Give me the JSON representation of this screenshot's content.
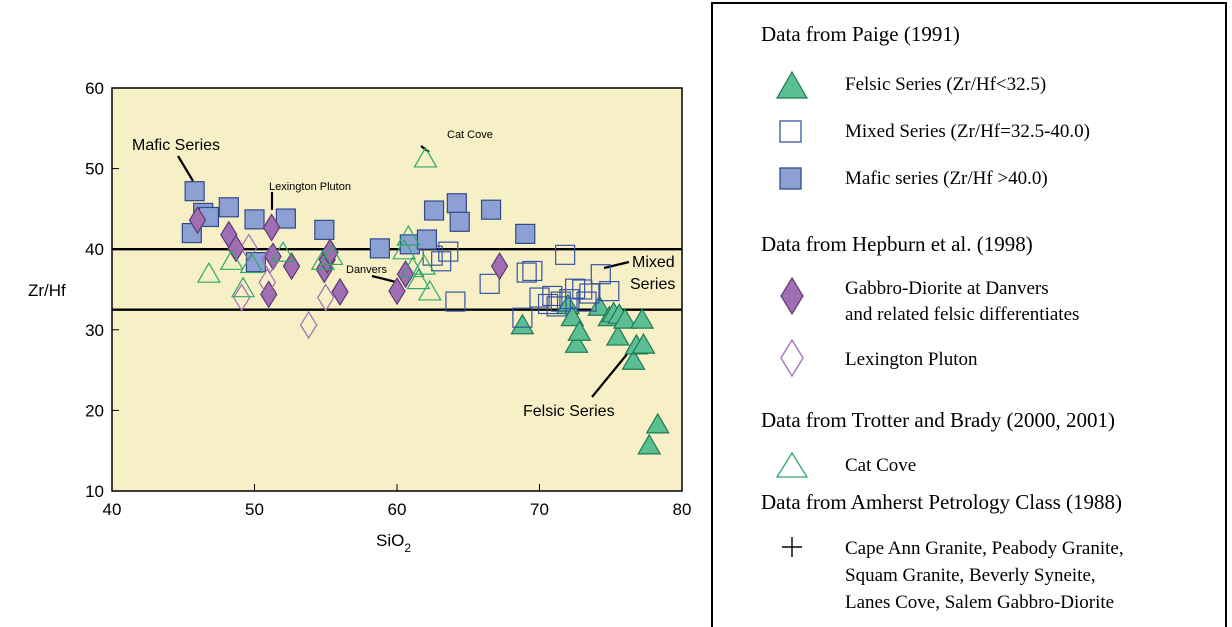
{
  "chart_data": {
    "type": "scatter",
    "xlabel": "SiO",
    "xlabel_sub": "2",
    "ylabel": "Zr/Hf",
    "xlim": [
      40,
      80
    ],
    "ylim": [
      10,
      60
    ],
    "xticks": [
      "40",
      "50",
      "60",
      "70",
      "80"
    ],
    "yticks": [
      "10",
      "20",
      "30",
      "40",
      "50",
      "60"
    ],
    "plot_background": "#f7f0c7",
    "hlines": [
      40.0,
      32.5
    ],
    "annotations": [
      {
        "text": "Mafic Series",
        "size": "large"
      },
      {
        "text": "Lexington Pluton",
        "size": "small"
      },
      {
        "text": "Cat Cove",
        "size": "small"
      },
      {
        "text": "Danvers",
        "size": "small"
      },
      {
        "text": "Mixed",
        "size": "large"
      },
      {
        "text": "Series",
        "size": "large"
      },
      {
        "text": "Felsic Series",
        "size": "large"
      }
    ],
    "series": [
      {
        "name": "Felsic Series (Zr/Hf<32.5)",
        "marker": "triangle-filled",
        "color": "#5cbf94",
        "x": [
          68.8,
          72.0,
          72.3,
          72.6,
          72.8,
          74.2,
          74.9,
          75.2,
          75.5,
          75.6,
          76.0,
          76.6,
          76.8,
          77.2,
          77.3,
          77.7,
          78.3
        ],
        "y": [
          30.5,
          33.0,
          31.5,
          28.2,
          29.7,
          32.8,
          31.5,
          32.0,
          29.1,
          31.8,
          31.2,
          26.1,
          28.0,
          31.2,
          28.1,
          15.6,
          18.2
        ]
      },
      {
        "name": "Mixed Series (Zr/Hf=32.5-40.0)",
        "marker": "square-open",
        "color": "#3555a0",
        "x": [
          62.5,
          63.1,
          63.6,
          64.1,
          66.5,
          68.8,
          69.1,
          69.5,
          70.0,
          70.6,
          70.9,
          71.2,
          71.5,
          71.8,
          72.1,
          72.5,
          73.0,
          73.3,
          73.5,
          74.3,
          74.9
        ],
        "y": [
          39.2,
          38.5,
          39.7,
          33.5,
          35.7,
          31.5,
          37.1,
          37.3,
          34.0,
          33.2,
          34.2,
          32.9,
          33.5,
          39.3,
          33.8,
          35.1,
          35.0,
          33.5,
          34.5,
          36.9,
          34.8
        ]
      },
      {
        "name": "Mafic series (Zr/Hf >40.0)",
        "marker": "square-filled",
        "color": "#8da0d3",
        "x": [
          45.6,
          45.8,
          46.4,
          46.8,
          48.2,
          50.0,
          50.1,
          52.2,
          54.9,
          58.8,
          60.9,
          62.1,
          62.6,
          64.2,
          64.4,
          66.6,
          69.0
        ],
        "y": [
          42.0,
          47.2,
          44.5,
          44.0,
          45.2,
          43.7,
          38.4,
          43.8,
          42.4,
          40.1,
          40.6,
          41.2,
          44.8,
          45.7,
          43.4,
          44.9,
          41.9
        ]
      },
      {
        "name": "Gabbro-Diorite at Danvers and related felsic differentiates",
        "marker": "diamond-filled",
        "color": "#9f6eb3",
        "x": [
          46.0,
          48.2,
          48.7,
          51.0,
          51.2,
          51.3,
          52.6,
          54.9,
          55.1,
          55.3,
          56.0,
          60.0,
          60.6,
          67.2
        ],
        "y": [
          43.6,
          41.8,
          40.1,
          34.4,
          42.7,
          39.1,
          37.9,
          37.5,
          38.7,
          39.6,
          34.7,
          34.8,
          36.9,
          37.9
        ]
      },
      {
        "name": "Lexington Pluton",
        "marker": "diamond-open",
        "color": "#9f6eb3",
        "x": [
          49.1,
          49.6,
          50.9,
          51.1,
          53.8,
          55.0
        ],
        "y": [
          34.0,
          40.2,
          35.9,
          38.7,
          30.6,
          34.0
        ]
      },
      {
        "name": "Cat Cove",
        "marker": "triangle-open",
        "color": "#2fa86a",
        "x": [
          46.8,
          48.4,
          49.2,
          49.8,
          52.0,
          54.8,
          55.4,
          60.5,
          60.8,
          61.1,
          61.5,
          61.9,
          62.0,
          62.3
        ],
        "y": [
          36.9,
          38.5,
          35.1,
          38.1,
          39.5,
          38.5,
          39.1,
          39.8,
          41.5,
          37.6,
          36.1,
          37.9,
          51.2,
          34.7
        ]
      }
    ]
  },
  "legend": {
    "groups": [
      {
        "heading": "Data from Paige (1991)",
        "items": [
          {
            "label": "Felsic Series (Zr/Hf<32.5)",
            "icon": "filled-triangle"
          },
          {
            "label": "Mixed Series (Zr/Hf=32.5-40.0)",
            "icon": "open-square"
          },
          {
            "label": "Mafic series (Zr/Hf >40.0)",
            "icon": "filled-square"
          }
        ]
      },
      {
        "heading": "Data from Hepburn et al. (1998)",
        "items": [
          {
            "label": "Gabbro-Diorite at Danvers",
            "label2": "and related felsic differentiates",
            "icon": "filled-diamond"
          },
          {
            "label": "Lexington Pluton",
            "icon": "open-diamond"
          }
        ]
      },
      {
        "heading": "Data from Trotter and Brady (2000, 2001)",
        "items": [
          {
            "label": "Cat Cove",
            "icon": "open-triangle"
          }
        ]
      },
      {
        "heading": "Data from Amherst Petrology Class (1988)",
        "items": [
          {
            "label": "Cape Ann Granite, Peabody Granite,",
            "label2": "Squam Granite, Beverly Syneite,",
            "label3": "Lanes Cove, Salem Gabbro-Diorite",
            "icon": "plus"
          }
        ]
      }
    ]
  }
}
